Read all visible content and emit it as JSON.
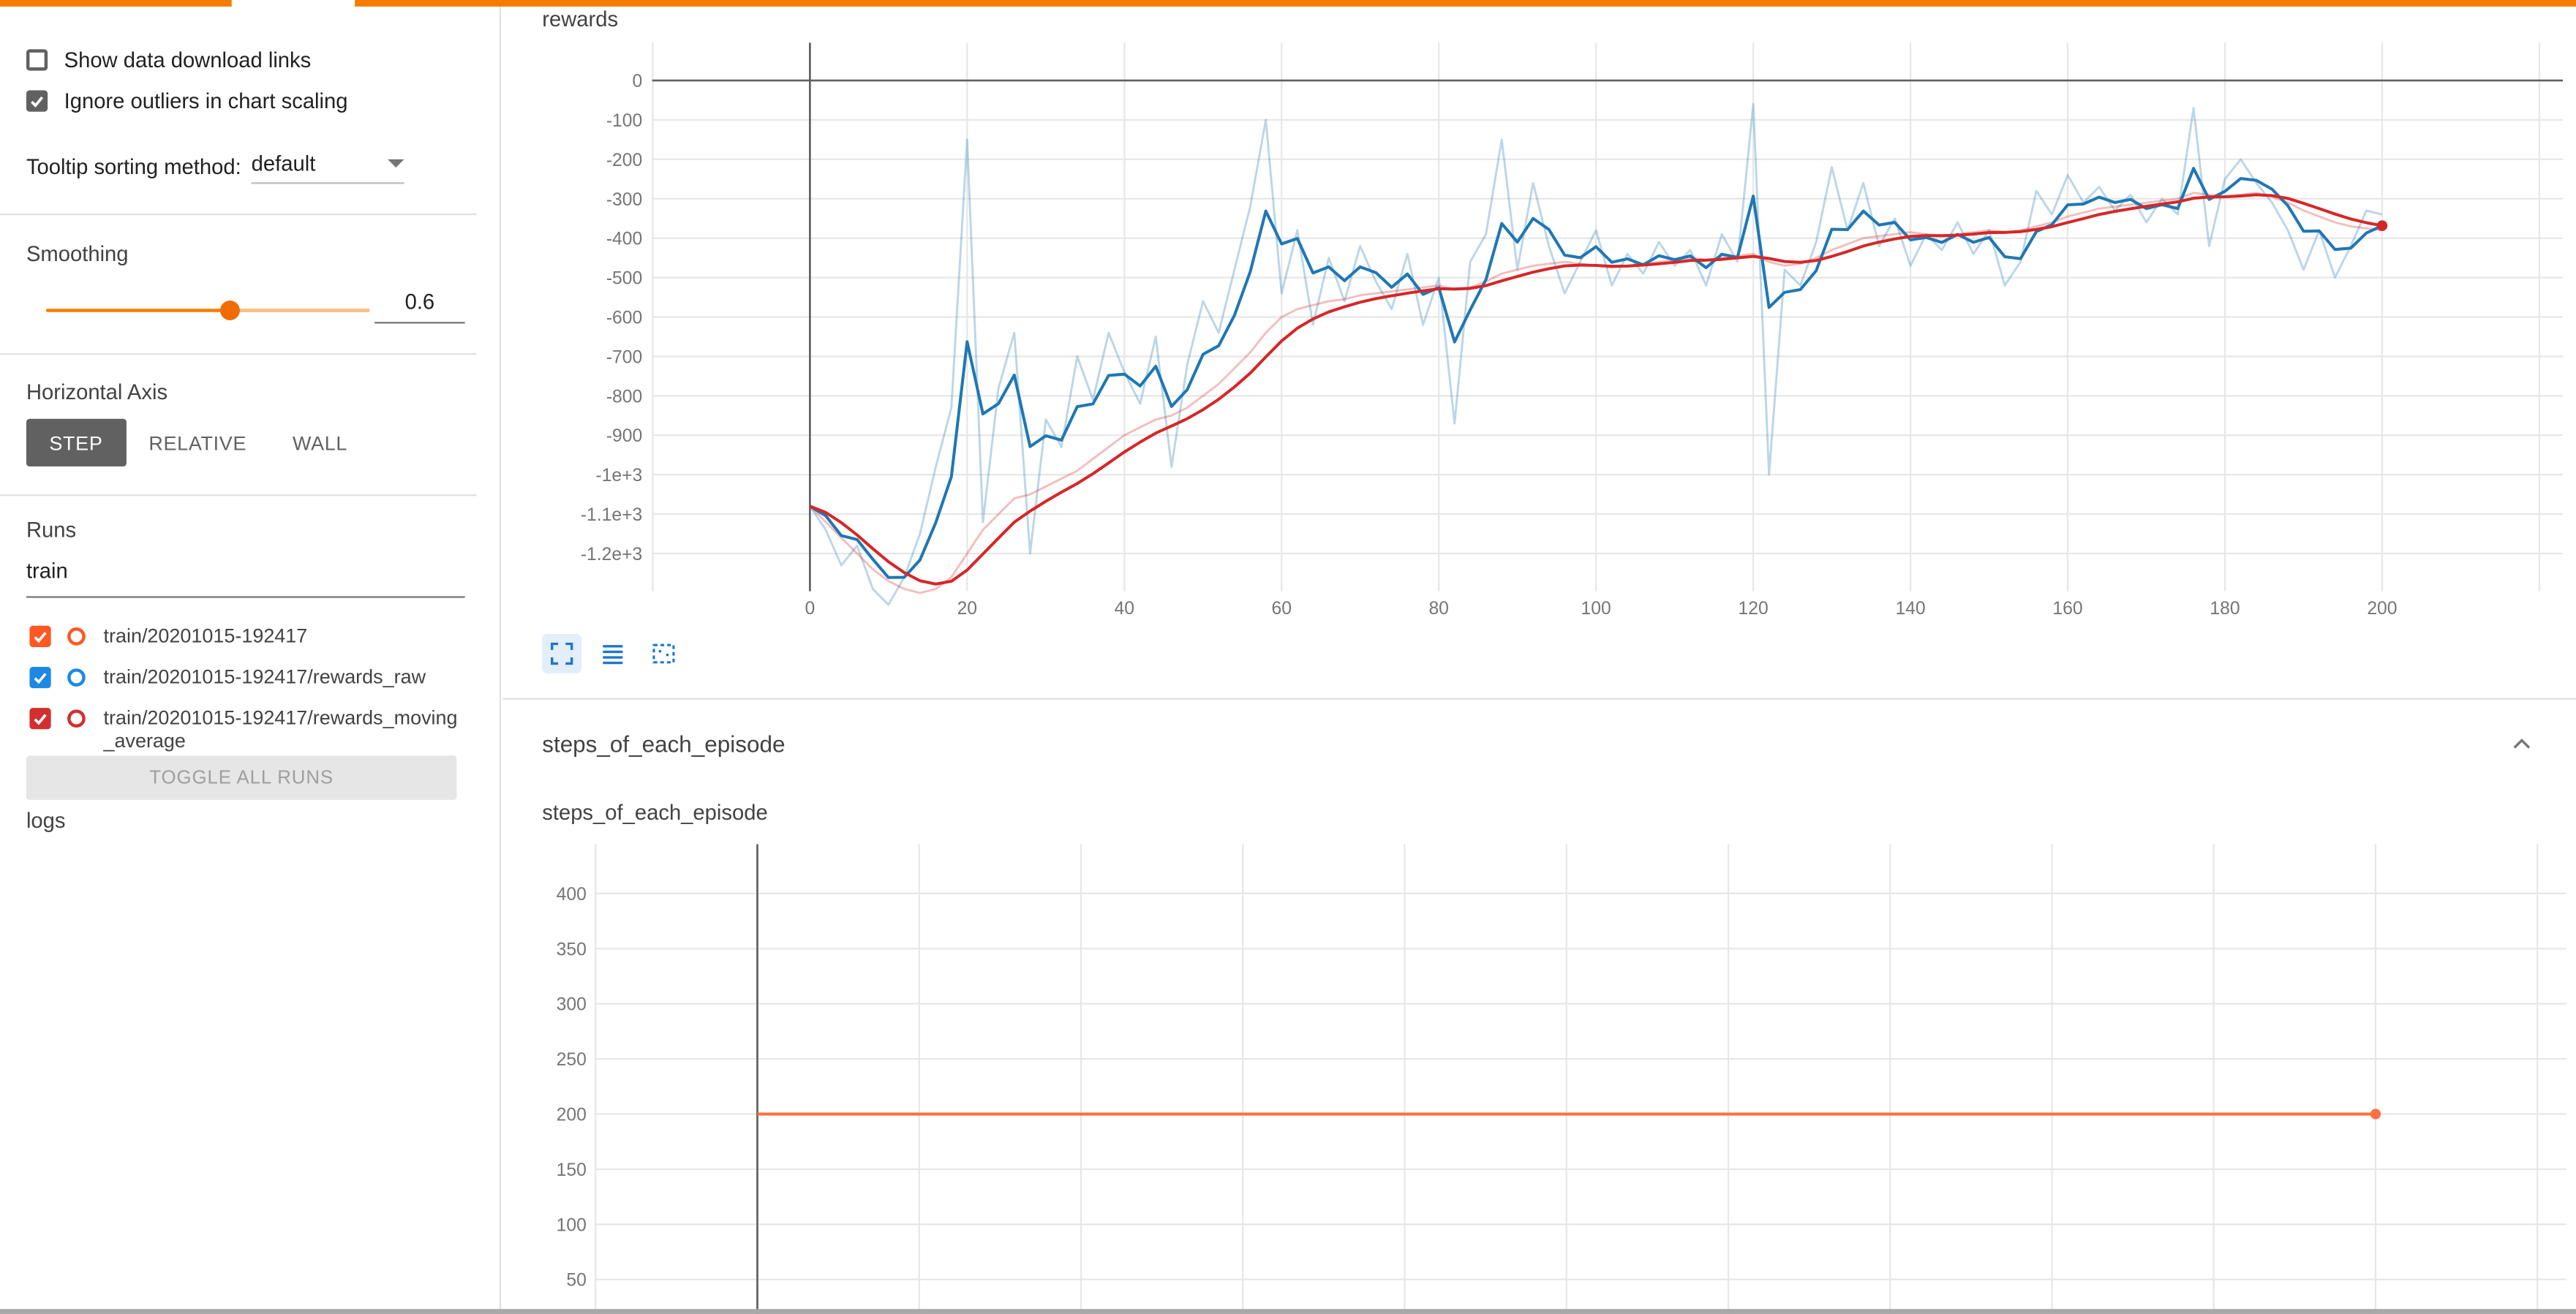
{
  "header": {
    "accent_color": "#f57c00"
  },
  "sidebar": {
    "checkboxes": [
      {
        "label": "Show data download links",
        "checked": false
      },
      {
        "label": "Ignore outliers in chart scaling",
        "checked": true
      }
    ],
    "tooltip_sorting": {
      "label": "Tooltip sorting method:",
      "value": "default"
    },
    "smoothing": {
      "label": "Smoothing",
      "value": "0.6"
    },
    "horizontal_axis": {
      "label": "Horizontal Axis",
      "options": [
        "STEP",
        "RELATIVE",
        "WALL"
      ],
      "selected": "STEP"
    },
    "runs": {
      "label": "Runs",
      "filter_value": "train",
      "items": [
        {
          "label": "train/20201015-192417",
          "color": "#ff5722",
          "checked": true
        },
        {
          "label": "train/20201015-192417/rewards_raw",
          "color": "#1e88e5",
          "checked": true
        },
        {
          "label": "train/20201015-192417/rewards_moving_average",
          "color": "#d32f2f",
          "checked": true
        }
      ],
      "toggle_all_label": "TOGGLE ALL RUNS"
    },
    "footer_label": "logs"
  },
  "main": {
    "section_header": "steps_of_each_episode"
  },
  "chart_data": [
    {
      "type": "line",
      "title": "rewards",
      "smoothing": 0.6,
      "x_start": 0,
      "x_step": 2,
      "xlim": [
        -20,
        223
      ],
      "ylim": [
        -1340,
        110
      ],
      "x_ticks": [
        0,
        20,
        40,
        60,
        80,
        100,
        120,
        140,
        160,
        180,
        200
      ],
      "x_tick_labels": [
        "0",
        "20",
        "40",
        "60",
        "80",
        "100",
        "120",
        "140",
        "160",
        "180",
        "200"
      ],
      "y_ticks": [
        0,
        -100,
        -200,
        -300,
        -400,
        -500,
        -600,
        -700,
        -800,
        -900,
        -1000,
        -1100,
        -1200
      ],
      "y_tick_labels": [
        "0",
        "-100",
        "-200",
        "-300",
        "-400",
        "-500",
        "-600",
        "-700",
        "-800",
        "-900",
        "-1e+3",
        "-1.1e+3",
        "-1.2e+3"
      ],
      "series": [
        {
          "name": "train/20201015-192417/rewards_raw",
          "color": "#1f77b4",
          "values": [
            -1080,
            -1140,
            -1230,
            -1180,
            -1290,
            -1330,
            -1260,
            -1150,
            -980,
            -830,
            -150,
            -1120,
            -780,
            -640,
            -1200,
            -860,
            -930,
            -700,
            -810,
            -640,
            -740,
            -820,
            -650,
            -980,
            -720,
            -560,
            -640,
            -480,
            -320,
            -100,
            -540,
            -380,
            -620,
            -450,
            -560,
            -420,
            -510,
            -580,
            -440,
            -620,
            -500,
            -870,
            -460,
            -390,
            -150,
            -480,
            -260,
            -420,
            -540,
            -460,
            -380,
            -520,
            -440,
            -490,
            -410,
            -470,
            -430,
            -520,
            -390,
            -460,
            -60,
            -1000,
            -480,
            -520,
            -410,
            -220,
            -380,
            -260,
            -420,
            -350,
            -470,
            -390,
            -430,
            -360,
            -440,
            -380,
            -520,
            -460,
            -280,
            -340,
            -240,
            -310,
            -270,
            -330,
            -290,
            -360,
            -300,
            -340,
            -70,
            -420,
            -250,
            -200,
            -260,
            -310,
            -380,
            -480,
            -380,
            -500,
            -420,
            -330,
            -340
          ]
        },
        {
          "name": "train/20201015-192417/rewards_moving_average",
          "color": "#d62728",
          "values": [
            -1080,
            -1120,
            -1160,
            -1200,
            -1240,
            -1270,
            -1290,
            -1300,
            -1290,
            -1260,
            -1200,
            -1140,
            -1100,
            -1060,
            -1050,
            -1030,
            -1010,
            -990,
            -960,
            -930,
            -900,
            -880,
            -860,
            -850,
            -830,
            -800,
            -770,
            -730,
            -690,
            -640,
            -600,
            -580,
            -570,
            -560,
            -555,
            -545,
            -540,
            -535,
            -530,
            -525,
            -520,
            -530,
            -525,
            -510,
            -490,
            -480,
            -470,
            -465,
            -460,
            -465,
            -470,
            -475,
            -470,
            -465,
            -460,
            -455,
            -450,
            -455,
            -450,
            -445,
            -440,
            -460,
            -470,
            -465,
            -450,
            -430,
            -415,
            -400,
            -395,
            -390,
            -385,
            -390,
            -395,
            -390,
            -385,
            -380,
            -385,
            -380,
            -370,
            -360,
            -345,
            -335,
            -325,
            -320,
            -315,
            -310,
            -305,
            -300,
            -285,
            -290,
            -295,
            -290,
            -285,
            -295,
            -310,
            -330,
            -345,
            -360,
            -370,
            -375,
            -380
          ]
        }
      ]
    },
    {
      "type": "line",
      "title": "steps_of_each_episode",
      "xlim": [
        -20,
        223
      ],
      "ylim": [
        30,
        430
      ],
      "x_ticks": [
        0,
        20,
        40,
        60,
        80,
        100,
        120,
        140,
        160,
        180,
        200
      ],
      "x_tick_labels": [],
      "y_ticks": [
        400,
        350,
        300,
        250,
        200,
        150,
        100,
        50
      ],
      "y_tick_labels": [
        "400",
        "350",
        "300",
        "250",
        "200",
        "150",
        "100",
        "50"
      ],
      "series": [
        {
          "name": "train/20201015-192417",
          "color": "#ff7043",
          "x": [
            0,
            200
          ],
          "values": [
            200,
            200
          ]
        }
      ]
    }
  ]
}
